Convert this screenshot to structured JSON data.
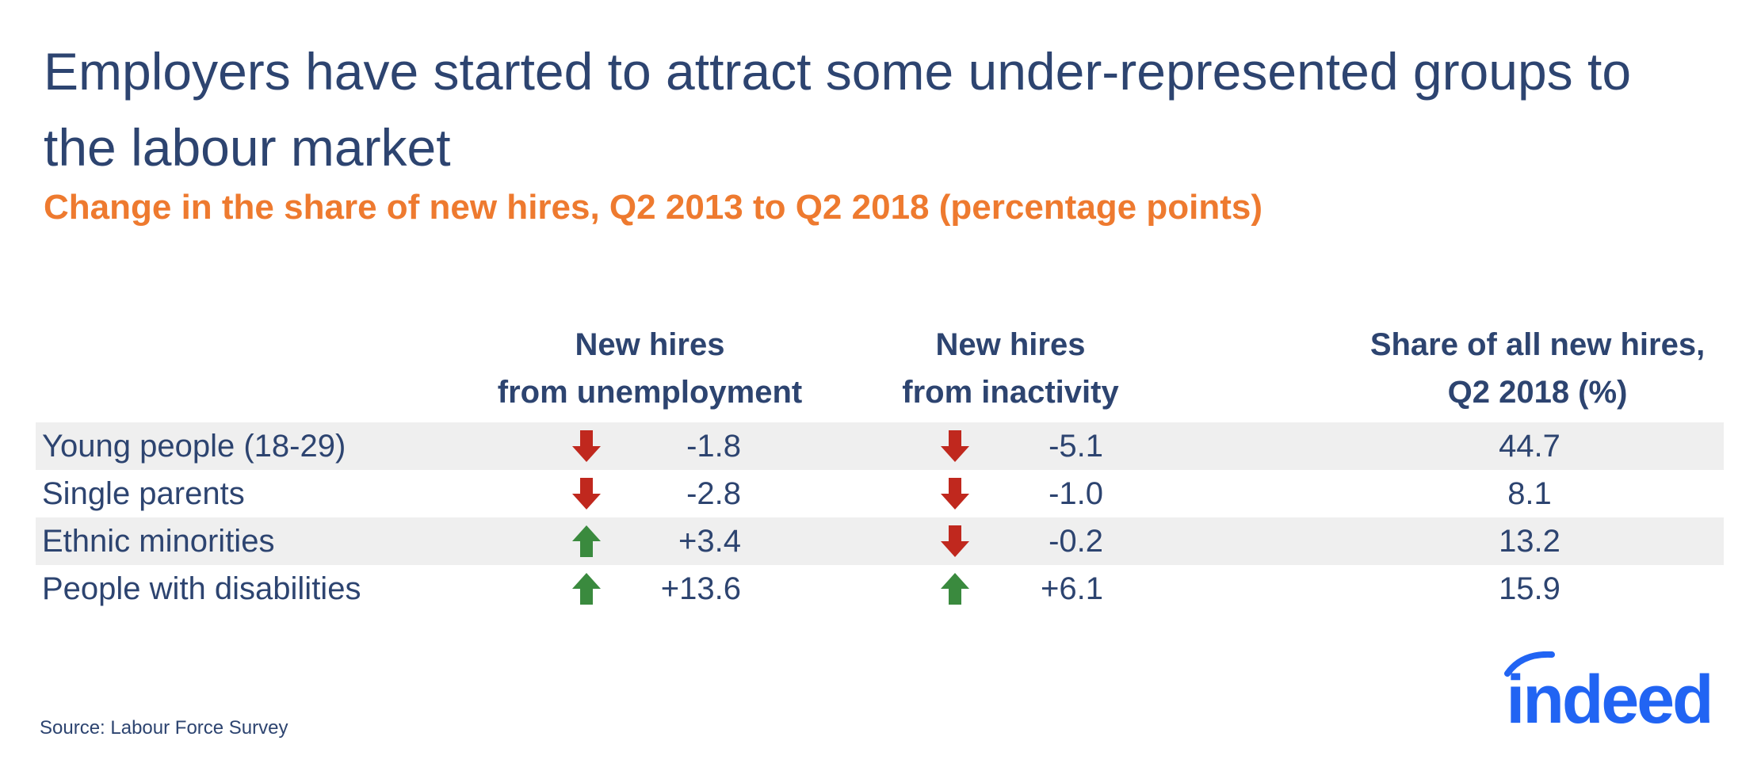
{
  "title": "Employers have started to attract some under-represented groups to the labour market",
  "subtitle": "Change in the share of new hires, Q2 2013 to Q2 2018 (percentage points)",
  "columns": [
    {
      "line1": "New hires",
      "line2": "from unemployment"
    },
    {
      "line1": "New hires",
      "line2": "from inactivity"
    },
    {
      "line1": "Share of all new hires,",
      "line2": "Q2 2018 (%)"
    }
  ],
  "rows": [
    {
      "label": "Young people (18-29)",
      "unemp": "-1.8",
      "inact": "-5.1",
      "share": "44.7"
    },
    {
      "label": "Single parents",
      "unemp": "-2.8",
      "inact": "-1.0",
      "share": "8.1"
    },
    {
      "label": "Ethnic minorities",
      "unemp": "+3.4",
      "inact": "-0.2",
      "share": "13.2"
    },
    {
      "label": "People with disabilities",
      "unemp": "+13.6",
      "inact": "+6.1",
      "share": "15.9"
    }
  ],
  "colors": {
    "up": "#3a8a3e",
    "down": "#c0281e",
    "title": "#2d4470",
    "subtitle": "#ee7a2f",
    "brand": "#2164f3"
  },
  "source": "Source: Labour Force Survey",
  "logo_text": "indeed",
  "chart_data": {
    "type": "table",
    "title": "Employers have started to attract some under-represented groups to the labour market",
    "subtitle": "Change in the share of new hires, Q2 2013 to Q2 2018 (percentage points)",
    "categories": [
      "Young people (18-29)",
      "Single parents",
      "Ethnic minorities",
      "People with disabilities"
    ],
    "series": [
      {
        "name": "New hires from unemployment",
        "values": [
          -1.8,
          -2.8,
          3.4,
          13.6
        ]
      },
      {
        "name": "New hires from inactivity",
        "values": [
          -5.1,
          -1.0,
          -0.2,
          6.1
        ]
      },
      {
        "name": "Share of all new hires, Q2 2018 (%)",
        "values": [
          44.7,
          8.1,
          13.2,
          15.9
        ]
      }
    ]
  }
}
